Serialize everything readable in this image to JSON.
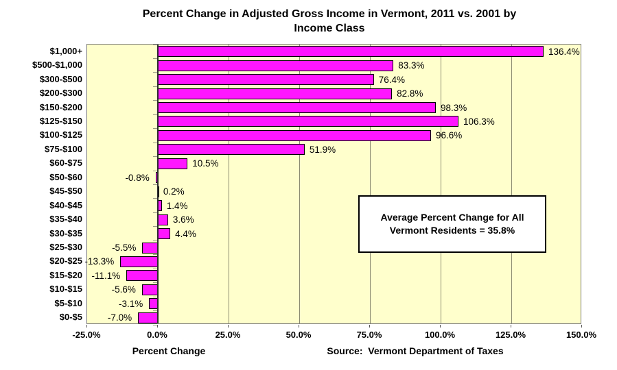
{
  "chart_data": {
    "type": "bar",
    "orientation": "horizontal",
    "title": "Percent Change in Adjusted Gross Income in Vermont, 2011 vs. 2001 by Income Class",
    "title_lines": [
      "Percent Change in Adjusted Gross Income in Vermont, 2011 vs. 2001 by",
      "Income Class"
    ],
    "categories": [
      "$1,000+",
      "$500-$1,000",
      "$300-$500",
      "$200-$300",
      "$150-$200",
      "$125-$150",
      "$100-$125",
      "$75-$100",
      "$60-$75",
      "$50-$60",
      "$45-$50",
      "$40-$45",
      "$35-$40",
      "$30-$35",
      "$25-$30",
      "$20-$25",
      "$15-$20",
      "$10-$15",
      "$5-$10",
      "$0-$5"
    ],
    "values": [
      136.4,
      83.3,
      76.4,
      82.8,
      98.3,
      106.3,
      96.6,
      51.9,
      10.5,
      -0.8,
      0.2,
      1.4,
      3.6,
      4.4,
      -5.5,
      -13.3,
      -11.1,
      -5.6,
      -3.1,
      -7.0
    ],
    "data_labels": [
      "136.4%",
      "83.3%",
      "76.4%",
      "82.8%",
      "98.3%",
      "106.3%",
      "96.6%",
      "51.9%",
      "10.5%",
      "-0.8%",
      "0.2%",
      "1.4%",
      "3.6%",
      "4.4%",
      "-5.5%",
      "-13.3%",
      "-11.1%",
      "-5.6%",
      "-3.1%",
      "-7.0%"
    ],
    "xlabel": "Percent Change",
    "x_ticks": [
      "-25.0%",
      "0.0%",
      "25.0%",
      "50.0%",
      "75.0%",
      "100.0%",
      "125.0%",
      "150.0%"
    ],
    "x_tick_values": [
      -25,
      0,
      25,
      50,
      75,
      100,
      125,
      150
    ],
    "xlim": [
      -25,
      150
    ],
    "grid": true,
    "grid_values": [
      25,
      50,
      75,
      100,
      125
    ],
    "legend": false,
    "annotation": {
      "lines": [
        "Average Percent Change for All",
        "Vermont Residents = 35.8%"
      ]
    },
    "source_note": "Source:  Vermont Department of Taxes",
    "colors": {
      "bar_fill": "#FF16FF",
      "bar_border": "#000000",
      "plot_bg": "#FFFFCC",
      "gridline": "#8B8B70",
      "plot_border": "#767676",
      "zero_axis": "#2B2B2B",
      "cat_tick": "#9A9A84",
      "annotation_bg": "#FFFFFF",
      "annotation_border": "#000000",
      "text": "#000000"
    }
  }
}
